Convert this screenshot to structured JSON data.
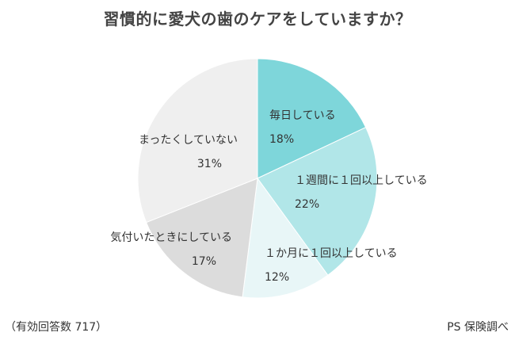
{
  "title": "習慣的に愛犬の歯のケアをしていますか？",
  "footer": {
    "sample": "（有効回答数 717）",
    "source": "PS 保険調べ"
  },
  "chart_data": {
    "type": "pie",
    "title": "習慣的に愛犬の歯のケアをしていますか？",
    "slices": [
      {
        "label": "毎日している",
        "value": 18,
        "percent_label": "18%",
        "color": "#7ed6da"
      },
      {
        "label": "１週間に１回以上している",
        "value": 22,
        "percent_label": "22%",
        "color": "#b1e6e8"
      },
      {
        "label": "１か月に１回以上している",
        "value": 12,
        "percent_label": "12%",
        "color": "#e8f6f7"
      },
      {
        "label": "気付いたときにしている",
        "value": 17,
        "percent_label": "17%",
        "color": "#dcdcdc"
      },
      {
        "label": "まったくしていない",
        "value": 31,
        "percent_label": "31%",
        "color": "#efefef"
      }
    ],
    "start": "top",
    "direction": "clockwise"
  }
}
